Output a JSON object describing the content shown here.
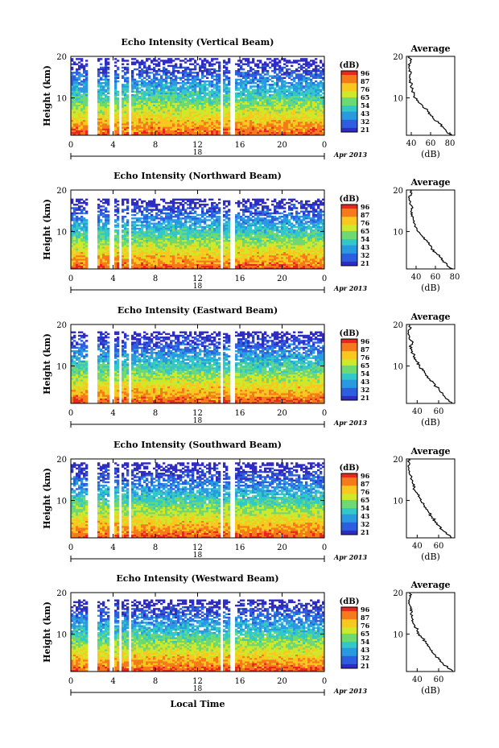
{
  "figure": {
    "bottom_xlabel": "Local Time"
  },
  "colorbar": {
    "unit": "(dB)",
    "ticks": [
      "96",
      "87",
      "76",
      "65",
      "54",
      "43",
      "32",
      "21"
    ],
    "colors": [
      "#e8281e",
      "#f57a1a",
      "#f9c81e",
      "#cfe82a",
      "#6ed872",
      "#33c8c8",
      "#2a9ae0",
      "#2d5ee0",
      "#2f2cc2"
    ]
  },
  "chart_data": [
    {
      "type": "heatmap",
      "title": "Echo Intensity (Vertical Beam)",
      "ylabel": "Height (km)",
      "xticks": [
        "0",
        "4",
        "8",
        "12",
        "16",
        "20",
        "0"
      ],
      "day_label": "18",
      "month_label": "Apr 2013",
      "ylim": [
        1,
        20
      ],
      "yticks": [
        "20",
        "10"
      ],
      "clim": [
        21,
        96
      ],
      "echo_top_km": 19.5,
      "gaps_hours": [
        [
          1.5,
          2.6
        ],
        [
          3.6,
          4.0
        ],
        [
          4.5,
          4.8
        ],
        [
          5.4,
          5.8
        ],
        [
          14.1,
          14.4
        ],
        [
          15.2,
          15.5
        ]
      ],
      "profile": {
        "title": "Average",
        "xlabel": "(dB)",
        "xticks": [
          "40",
          "60",
          "80"
        ],
        "xlim": [
          35,
          85
        ],
        "heights_km": [
          1,
          2,
          3,
          4,
          5,
          6,
          7,
          8,
          9,
          10,
          11,
          12,
          13,
          14,
          15,
          16,
          17,
          18,
          19,
          20
        ],
        "values_db": [
          82,
          76,
          73,
          68,
          63,
          60,
          57,
          52,
          47,
          44,
          43,
          41,
          40,
          39,
          38,
          40,
          38,
          37,
          39,
          38
        ]
      }
    },
    {
      "type": "heatmap",
      "title": "Echo Intensity (Northward Beam)",
      "ylabel": "Height (km)",
      "xticks": [
        "0",
        "4",
        "8",
        "12",
        "16",
        "20",
        "0"
      ],
      "day_label": "18",
      "month_label": "Apr 2013",
      "ylim": [
        1,
        20
      ],
      "yticks": [
        "20",
        "10"
      ],
      "clim": [
        21,
        96
      ],
      "echo_top_km": 18.0,
      "gaps_hours": [
        [
          1.5,
          2.5
        ],
        [
          3.6,
          4.0
        ],
        [
          4.5,
          4.8
        ],
        [
          5.4,
          5.8
        ],
        [
          14.1,
          14.4
        ],
        [
          15.2,
          15.5
        ]
      ],
      "profile": {
        "title": "Average",
        "xlabel": "(dB)",
        "xticks": [
          "40",
          "60",
          "80"
        ],
        "xlim": [
          30,
          80
        ],
        "heights_km": [
          1,
          2,
          3,
          4,
          5,
          6,
          7,
          8,
          9,
          10,
          11,
          12,
          13,
          14,
          15,
          16,
          17,
          18,
          19,
          20
        ],
        "values_db": [
          78,
          72,
          68,
          64,
          60,
          56,
          53,
          50,
          46,
          42,
          40,
          38,
          37,
          36,
          35,
          36,
          34,
          33,
          35,
          34
        ]
      }
    },
    {
      "type": "heatmap",
      "title": "Echo Intensity (Eastward Beam)",
      "ylabel": "Height (km)",
      "xticks": [
        "0",
        "4",
        "8",
        "12",
        "16",
        "20",
        "0"
      ],
      "day_label": "18",
      "month_label": "Apr 2013",
      "ylim": [
        1,
        20
      ],
      "yticks": [
        "20",
        "10"
      ],
      "clim": [
        21,
        96
      ],
      "echo_top_km": 18.5,
      "gaps_hours": [
        [
          1.5,
          2.5
        ],
        [
          3.6,
          4.0
        ],
        [
          4.5,
          4.8
        ],
        [
          5.4,
          5.8
        ],
        [
          14.1,
          14.4
        ],
        [
          15.2,
          15.5
        ]
      ],
      "profile": {
        "title": "Average",
        "xlabel": "(dB)",
        "xticks": [
          "40",
          "60"
        ],
        "xlim": [
          30,
          75
        ],
        "heights_km": [
          1,
          2,
          3,
          4,
          5,
          6,
          7,
          8,
          9,
          10,
          11,
          12,
          13,
          14,
          15,
          16,
          17,
          18,
          19,
          20
        ],
        "values_db": [
          73,
          68,
          64,
          61,
          58,
          55,
          51,
          48,
          45,
          42,
          40,
          38,
          36,
          35,
          34,
          35,
          33,
          32,
          34,
          33
        ]
      }
    },
    {
      "type": "heatmap",
      "title": "Echo Intensity (Southward Beam)",
      "ylabel": "Height (km)",
      "xticks": [
        "0",
        "4",
        "8",
        "12",
        "16",
        "20",
        "0"
      ],
      "day_label": "18",
      "month_label": "Apr 2013",
      "ylim": [
        1,
        20
      ],
      "yticks": [
        "20",
        "10"
      ],
      "clim": [
        21,
        96
      ],
      "echo_top_km": 19.0,
      "gaps_hours": [
        [
          1.5,
          2.5
        ],
        [
          3.6,
          4.0
        ],
        [
          4.5,
          4.8
        ],
        [
          5.4,
          5.8
        ],
        [
          14.1,
          14.4
        ],
        [
          15.2,
          15.5
        ]
      ],
      "profile": {
        "title": "Average",
        "xlabel": "(dB)",
        "xticks": [
          "40",
          "60"
        ],
        "xlim": [
          30,
          75
        ],
        "heights_km": [
          1,
          2,
          3,
          4,
          5,
          6,
          7,
          8,
          9,
          10,
          11,
          12,
          13,
          14,
          15,
          16,
          17,
          18,
          19,
          20
        ],
        "values_db": [
          72,
          67,
          63,
          60,
          57,
          54,
          51,
          48,
          46,
          43,
          41,
          39,
          37,
          36,
          35,
          34,
          33,
          32,
          33,
          32
        ]
      }
    },
    {
      "type": "heatmap",
      "title": "Echo Intensity (Westward Beam)",
      "ylabel": "Height (km)",
      "xticks": [
        "0",
        "4",
        "8",
        "12",
        "16",
        "20",
        "0"
      ],
      "day_label": "18",
      "month_label": "Apr 2013",
      "ylim": [
        1,
        20
      ],
      "yticks": [
        "20",
        "10"
      ],
      "clim": [
        21,
        96
      ],
      "echo_top_km": 18.5,
      "gaps_hours": [
        [
          1.5,
          2.5
        ],
        [
          3.6,
          4.0
        ],
        [
          4.5,
          4.8
        ],
        [
          5.4,
          5.8
        ],
        [
          14.1,
          14.4
        ],
        [
          15.2,
          15.5
        ]
      ],
      "profile": {
        "title": "Average",
        "xlabel": "(dB)",
        "xticks": [
          "40",
          "60"
        ],
        "xlim": [
          30,
          75
        ],
        "heights_km": [
          1,
          2,
          3,
          4,
          5,
          6,
          7,
          8,
          9,
          10,
          11,
          12,
          13,
          14,
          15,
          16,
          17,
          18,
          19,
          20
        ],
        "values_db": [
          73,
          68,
          64,
          60,
          57,
          54,
          51,
          48,
          45,
          42,
          40,
          38,
          36,
          35,
          34,
          35,
          33,
          32,
          34,
          33
        ]
      }
    }
  ]
}
